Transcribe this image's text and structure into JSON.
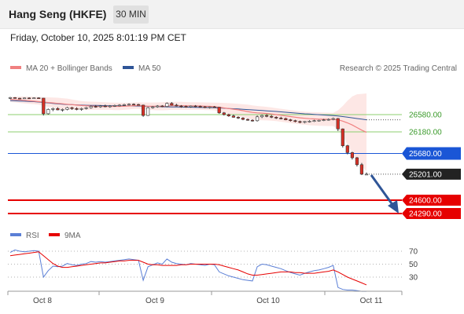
{
  "header": {
    "title": "Hang Seng (HKFE)",
    "interval": "30 MIN"
  },
  "datetime": "Friday, October 10, 2025 8:01:19 PM CET",
  "legend": {
    "ma20_bb": "MA 20 + Bollinger Bands",
    "ma50": "MA 50",
    "copyright": "Research © 2025 Trading Central",
    "rsi": "RSI",
    "rsi_ma": "9MA"
  },
  "colors": {
    "ma20": "#f08080",
    "ma50": "#2f5597",
    "band": "#fde3e0",
    "resistance": "#8ccf6f",
    "pivot": "#1a56d6",
    "support": "#e60000",
    "rsi": "#5b7fd6",
    "rsi_ma": "#e60000",
    "up": "#ffffff",
    "down": "#d93025"
  },
  "chart_data": {
    "type": "candlestick",
    "price_levels": [
      {
        "label": "26580.00",
        "value": 26580,
        "kind": "resistance"
      },
      {
        "label": "26180.00",
        "value": 26180,
        "kind": "resistance"
      },
      {
        "label": "25680.00",
        "value": 25680,
        "kind": "pivot"
      },
      {
        "label": "25201.00",
        "value": 25201,
        "kind": "last"
      },
      {
        "label": "24600.00",
        "value": 24600,
        "kind": "support"
      },
      {
        "label": "24290.00",
        "value": 24290,
        "kind": "support"
      }
    ],
    "last_price": 25201,
    "x_ticks": [
      "Oct 8",
      "Oct 9",
      "Oct 10",
      "Oct 11"
    ],
    "candles": [
      [
        26960,
        26990,
        26940,
        26975
      ],
      [
        26975,
        26985,
        26950,
        26960
      ],
      [
        26960,
        26970,
        26940,
        26955
      ],
      [
        26955,
        26975,
        26945,
        26965
      ],
      [
        26965,
        26980,
        26955,
        26960
      ],
      [
        26960,
        26975,
        26950,
        26968
      ],
      [
        26968,
        26980,
        26955,
        26962
      ],
      [
        26962,
        26965,
        26560,
        26600
      ],
      [
        26600,
        26720,
        26580,
        26700
      ],
      [
        26700,
        26740,
        26660,
        26720
      ],
      [
        26720,
        26750,
        26680,
        26690
      ],
      [
        26690,
        26720,
        26650,
        26700
      ],
      [
        26700,
        26760,
        26680,
        26740
      ],
      [
        26740,
        26760,
        26690,
        26720
      ],
      [
        26720,
        26750,
        26680,
        26700
      ],
      [
        26700,
        26740,
        26670,
        26720
      ],
      [
        26720,
        26760,
        26700,
        26740
      ],
      [
        26740,
        26790,
        26720,
        26770
      ],
      [
        26770,
        26800,
        26740,
        26760
      ],
      [
        26760,
        26800,
        26740,
        26780
      ],
      [
        26780,
        26810,
        26750,
        26770
      ],
      [
        26770,
        26800,
        26740,
        26780
      ],
      [
        26780,
        26810,
        26760,
        26790
      ],
      [
        26790,
        26820,
        26770,
        26800
      ],
      [
        26800,
        26830,
        26780,
        26810
      ],
      [
        26810,
        26840,
        26790,
        26820
      ],
      [
        26820,
        26840,
        26800,
        26815
      ],
      [
        26815,
        26830,
        26795,
        26800
      ],
      [
        26800,
        26810,
        26530,
        26560
      ],
      [
        26560,
        26760,
        26550,
        26740
      ],
      [
        26740,
        26780,
        26720,
        26760
      ],
      [
        26760,
        26800,
        26740,
        26780
      ],
      [
        26780,
        26800,
        26750,
        26770
      ],
      [
        26770,
        26860,
        26750,
        26840
      ],
      [
        26840,
        26870,
        26790,
        26800
      ],
      [
        26800,
        26830,
        26770,
        26780
      ],
      [
        26780,
        26800,
        26740,
        26770
      ],
      [
        26770,
        26790,
        26740,
        26760
      ],
      [
        26760,
        26790,
        26740,
        26780
      ],
      [
        26780,
        26800,
        26750,
        26770
      ],
      [
        26770,
        26790,
        26740,
        26760
      ],
      [
        26760,
        26780,
        26730,
        26750
      ],
      [
        26750,
        26770,
        26720,
        26760
      ],
      [
        26760,
        26780,
        26740,
        26750
      ],
      [
        26750,
        26760,
        26600,
        26620
      ],
      [
        26620,
        26640,
        26560,
        26580
      ],
      [
        26580,
        26600,
        26530,
        26550
      ],
      [
        26550,
        26580,
        26510,
        26520
      ],
      [
        26520,
        26540,
        26480,
        26500
      ],
      [
        26500,
        26520,
        26450,
        26470
      ],
      [
        26470,
        26490,
        26440,
        26450
      ],
      [
        26450,
        26470,
        26420,
        26440
      ],
      [
        26440,
        26560,
        26420,
        26530
      ],
      [
        26530,
        26580,
        26500,
        26560
      ],
      [
        26560,
        26590,
        26520,
        26540
      ],
      [
        26540,
        26570,
        26500,
        26520
      ],
      [
        26520,
        26540,
        26480,
        26500
      ],
      [
        26500,
        26530,
        26470,
        26490
      ],
      [
        26490,
        26510,
        26450,
        26460
      ],
      [
        26460,
        26480,
        26420,
        26440
      ],
      [
        26440,
        26460,
        26400,
        26420
      ],
      [
        26420,
        26440,
        26380,
        26400
      ],
      [
        26400,
        26430,
        26380,
        26420
      ],
      [
        26420,
        26450,
        26400,
        26430
      ],
      [
        26430,
        26460,
        26410,
        26440
      ],
      [
        26440,
        26460,
        26420,
        26450
      ],
      [
        26450,
        26480,
        26430,
        26460
      ],
      [
        26460,
        26490,
        26440,
        26470
      ],
      [
        26470,
        26510,
        26450,
        26490
      ],
      [
        26490,
        26500,
        26200,
        26250
      ],
      [
        26250,
        26260,
        25820,
        25860
      ],
      [
        25860,
        25880,
        25660,
        25700
      ],
      [
        25700,
        25720,
        25540,
        25580
      ],
      [
        25580,
        25600,
        25380,
        25420
      ],
      [
        25420,
        25460,
        25180,
        25200
      ],
      [
        25200,
        25240,
        25180,
        25201
      ]
    ],
    "rsi": [
      68,
      72,
      70,
      69,
      70,
      71,
      70,
      30,
      40,
      47,
      46,
      47,
      51,
      49,
      48,
      50,
      51,
      54,
      53,
      54,
      53,
      54,
      55,
      56,
      57,
      58,
      57,
      56,
      25,
      46,
      49,
      52,
      50,
      58,
      53,
      51,
      50,
      49,
      51,
      50,
      49,
      48,
      50,
      49,
      38,
      35,
      32,
      30,
      28,
      26,
      25,
      24,
      46,
      50,
      49,
      47,
      45,
      43,
      40,
      37,
      35,
      33,
      36,
      38,
      40,
      41,
      43,
      45,
      48,
      14,
      11,
      10,
      10,
      9,
      8,
      8
    ],
    "rsi_ma": [
      63,
      64,
      65,
      66,
      67,
      68,
      69,
      63,
      57,
      51,
      47,
      45,
      45,
      46,
      47,
      48,
      49,
      50,
      51,
      52,
      52,
      53,
      54,
      55,
      55,
      56,
      56,
      56,
      53,
      50,
      49,
      49,
      48,
      48,
      48,
      48,
      49,
      49,
      50,
      50,
      50,
      50,
      50,
      50,
      49,
      47,
      45,
      43,
      41,
      38,
      35,
      33,
      33,
      34,
      35,
      36,
      37,
      38,
      38,
      38,
      37,
      37,
      36,
      36,
      36,
      37,
      38,
      39,
      41,
      38,
      34,
      30,
      27,
      24,
      21,
      18
    ],
    "ma20": [
      26930,
      26925,
      26920,
      26910,
      26900,
      26890,
      26880,
      26870,
      26860,
      26850,
      26840,
      26830,
      26820,
      26810,
      26800,
      26790,
      26785,
      26780,
      26775,
      26770,
      26770,
      26770,
      26770,
      26770,
      26775,
      26780,
      26785,
      26790,
      26780,
      26775,
      26775,
      26775,
      26775,
      26780,
      26785,
      26785,
      26785,
      26785,
      26780,
      26780,
      26780,
      26775,
      26770,
      26765,
      26750,
      26735,
      26720,
      26705,
      26690,
      26670,
      26650,
      26630,
      26620,
      26615,
      26605,
      26595,
      26580,
      26565,
      26550,
      26535,
      26520,
      26505,
      26495,
      26485,
      26480,
      26475,
      26472,
      26470,
      26470,
      26460,
      26430,
      26390,
      26340,
      26280,
      26220,
      26170
    ],
    "ma50": [
      26905,
      26900,
      26895,
      26890,
      26885,
      26880,
      26870,
      26860,
      26850,
      26840,
      26830,
      26822,
      26815,
      26810,
      26805,
      26800,
      26797,
      26795,
      26792,
      26790,
      26788,
      26786,
      26785,
      26783,
      26782,
      26781,
      26780,
      26779,
      26775,
      26771,
      26768,
      26765,
      26762,
      26760,
      26758,
      26756,
      26754,
      26752,
      26750,
      26748,
      26746,
      26744,
      26742,
      26740,
      26734,
      26728,
      26722,
      26716,
      26710,
      26703,
      26696,
      26689,
      26682,
      26675,
      26668,
      26660,
      26652,
      26643,
      26634,
      26625,
      26616,
      26607,
      26599,
      26592,
      26585,
      26578,
      26571,
      26564,
      26558,
      26548,
      26535,
      26520,
      26505,
      26490,
      26475,
      26460
    ],
    "bb_upper": [
      26990,
      26995,
      27000,
      27000,
      26998,
      26995,
      26990,
      26985,
      26980,
      26975,
      26970,
      26960,
      26950,
      26930,
      26910,
      26895,
      26885,
      26880,
      26875,
      26870,
      26865,
      26860,
      26858,
      26855,
      26855,
      26855,
      26860,
      26865,
      26860,
      26860,
      26860,
      26862,
      26865,
      26870,
      26875,
      26875,
      26875,
      26870,
      26868,
      26866,
      26864,
      26862,
      26860,
      26858,
      26855,
      26850,
      26845,
      26840,
      26830,
      26820,
      26810,
      26795,
      26780,
      26770,
      26760,
      26745,
      26730,
      26715,
      26700,
      26685,
      26670,
      26655,
      26645,
      26640,
      26636,
      26632,
      26628,
      26625,
      26620,
      26680,
      26780,
      26900,
      27000,
      27050,
      27060,
      27070
    ],
    "bb_lower": [
      26870,
      26860,
      26850,
      26840,
      26830,
      26820,
      26810,
      26780,
      26760,
      26745,
      26720,
      26700,
      26690,
      26690,
      26690,
      26690,
      26690,
      26690,
      26690,
      26690,
      26690,
      26690,
      26685,
      26685,
      26690,
      26700,
      26710,
      26715,
      26700,
      26690,
      26685,
      26680,
      26680,
      26685,
      26690,
      26690,
      26690,
      26690,
      26690,
      26690,
      26690,
      26688,
      26685,
      26680,
      26650,
      26620,
      26590,
      26560,
      26540,
      26520,
      26495,
      26470,
      26455,
      26450,
      26445,
      26440,
      26430,
      26415,
      26400,
      26385,
      26370,
      26355,
      26345,
      26335,
      26328,
      26322,
      26318,
      26315,
      26315,
      26240,
      26090,
      25890,
      25690,
      25510,
      25380,
      25270
    ]
  }
}
